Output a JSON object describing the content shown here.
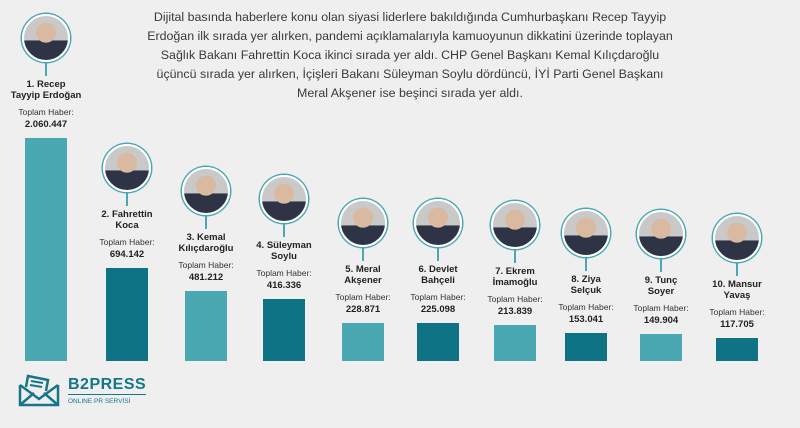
{
  "intro_text": "Dijital basında haberlere konu olan siyasi liderlere bakıldığında Cumhurbaşkanı Recep Tayyip Erdoğan ilk sırada yer alırken, pandemi açıklamalarıyla kamuoyunun dikkatini üzerinde toplayan Sağlık Bakanı Fahrettin Koca ikinci sırada yer aldı. CHP Genel Başkanı Kemal Kılıçdaroğlu üçüncü sırada yer alırken, İçişleri Bakanı Süleyman Soylu dördüncü, İYİ Parti Genel Başkanı Meral Akşener ise beşinci sırada yer aldı.",
  "logo": {
    "brand": "B2PRESS",
    "tagline": "ONLINE PR SERVİSİ"
  },
  "colors": {
    "light": "#4aa8b3",
    "dark": "#0e7485"
  },
  "chart_data": {
    "type": "bar",
    "value_label": "Toplam Haber:",
    "categories": [
      "1. Recep\nTayyip Erdoğan",
      "2. Fahrettin\nKoca",
      "3. Kemal\nKılıçdaroğlu",
      "4. Süleyman\nSoylu",
      "5. Meral\nAkşener",
      "6. Devlet\nBahçeli",
      "7. Ekrem\nİmamoğlu",
      "8. Ziya\nSelçuk",
      "9. Tunç\nSoyer",
      "10. Mansur\nYavaş"
    ],
    "values": [
      2060447,
      694142,
      481212,
      416336,
      228871,
      225098,
      213839,
      153041,
      149904,
      117705
    ],
    "value_labels": [
      "2.060.447",
      "694.142",
      "481.212",
      "416.336",
      "228.871",
      "225.098",
      "213.839",
      "153.041",
      "149.904",
      "117.705"
    ]
  }
}
